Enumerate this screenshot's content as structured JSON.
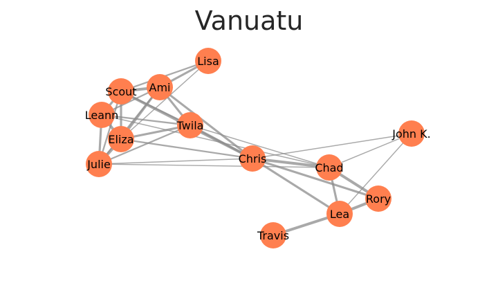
{
  "title": "Vanuatu",
  "colors": {
    "node": "#FF7F4F",
    "edge": "#8c8c8c",
    "title": "#262626"
  },
  "nodes": [
    {
      "id": "lisa",
      "label": "Lisa"
    },
    {
      "id": "ami",
      "label": "Ami"
    },
    {
      "id": "scout",
      "label": "Scout"
    },
    {
      "id": "leann",
      "label": "Leann"
    },
    {
      "id": "twila",
      "label": "Twila"
    },
    {
      "id": "eliza",
      "label": "Eliza"
    },
    {
      "id": "julie",
      "label": "Julie"
    },
    {
      "id": "chris",
      "label": "Chris"
    },
    {
      "id": "chad",
      "label": "Chad"
    },
    {
      "id": "johnk",
      "label": "John K."
    },
    {
      "id": "rory",
      "label": "Rory"
    },
    {
      "id": "lea",
      "label": "Lea"
    },
    {
      "id": "travis",
      "label": "Travis"
    }
  ],
  "edges": [
    {
      "source": "ami",
      "target": "lisa",
      "weight": 3
    },
    {
      "source": "scout",
      "target": "lisa",
      "weight": 2
    },
    {
      "source": "eliza",
      "target": "lisa",
      "weight": 1
    },
    {
      "source": "scout",
      "target": "ami",
      "weight": 4
    },
    {
      "source": "leann",
      "target": "ami",
      "weight": 2
    },
    {
      "source": "eliza",
      "target": "ami",
      "weight": 3
    },
    {
      "source": "julie",
      "target": "ami",
      "weight": 2
    },
    {
      "source": "twila",
      "target": "ami",
      "weight": 3
    },
    {
      "source": "chris",
      "target": "ami",
      "weight": 3
    },
    {
      "source": "leann",
      "target": "scout",
      "weight": 3
    },
    {
      "source": "eliza",
      "target": "scout",
      "weight": 3
    },
    {
      "source": "julie",
      "target": "scout",
      "weight": 2
    },
    {
      "source": "twila",
      "target": "scout",
      "weight": 2
    },
    {
      "source": "chris",
      "target": "scout",
      "weight": 4
    },
    {
      "source": "eliza",
      "target": "leann",
      "weight": 4
    },
    {
      "source": "julie",
      "target": "leann",
      "weight": 3
    },
    {
      "source": "twila",
      "target": "leann",
      "weight": 2
    },
    {
      "source": "chad",
      "target": "leann",
      "weight": 1
    },
    {
      "source": "julie",
      "target": "eliza",
      "weight": 4
    },
    {
      "source": "twila",
      "target": "eliza",
      "weight": 3
    },
    {
      "source": "chris",
      "target": "eliza",
      "weight": 2
    },
    {
      "source": "twila",
      "target": "julie",
      "weight": 2
    },
    {
      "source": "chris",
      "target": "julie",
      "weight": 1
    },
    {
      "source": "chad",
      "target": "julie",
      "weight": 1
    },
    {
      "source": "chris",
      "target": "twila",
      "weight": 3
    },
    {
      "source": "chad",
      "target": "twila",
      "weight": 1
    },
    {
      "source": "chad",
      "target": "chris",
      "weight": 4
    },
    {
      "source": "rory",
      "target": "chris",
      "weight": 3
    },
    {
      "source": "lea",
      "target": "chris",
      "weight": 3
    },
    {
      "source": "johnk",
      "target": "chris",
      "weight": 1
    },
    {
      "source": "rory",
      "target": "chad",
      "weight": 4
    },
    {
      "source": "lea",
      "target": "chad",
      "weight": 3
    },
    {
      "source": "johnk",
      "target": "chad",
      "weight": 1
    },
    {
      "source": "lea",
      "target": "rory",
      "weight": 4
    },
    {
      "source": "lea",
      "target": "johnk",
      "weight": 1
    },
    {
      "source": "travis",
      "target": "lea",
      "weight": 4
    }
  ]
}
